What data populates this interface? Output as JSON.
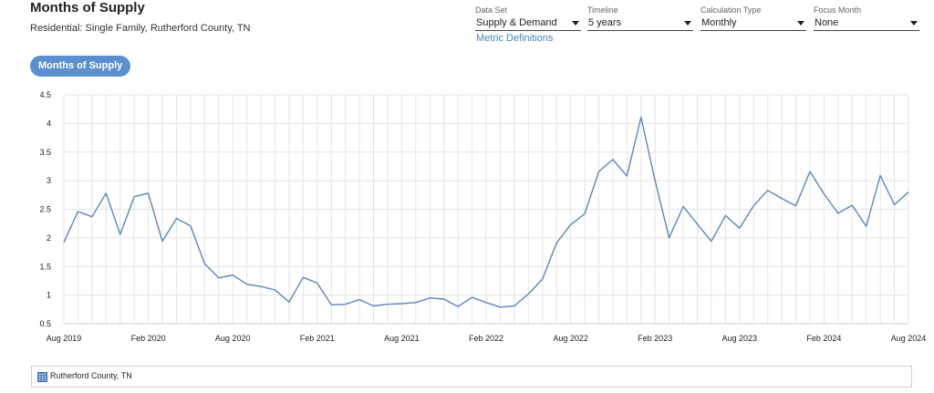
{
  "header": {
    "title": "Months of Supply",
    "subtitle": "Residential: Single Family, Rutherford County, TN"
  },
  "controls": {
    "data_set": {
      "label": "Data Set",
      "value": "Supply & Demand"
    },
    "timeline": {
      "label": "Timeline",
      "value": "5 years"
    },
    "calc_type": {
      "label": "Calculation Type",
      "value": "Monthly"
    },
    "focus_month": {
      "label": "Focus Month",
      "value": "None"
    }
  },
  "metric_definitions_link": "Metric Definitions",
  "metric_pill": "Months of Supply",
  "legend": {
    "label": "Rutherford County, TN"
  },
  "colors": {
    "accent": "#5b8fd0",
    "line": "#5a87c0",
    "link": "#4a84c4",
    "grid": "#e4e4e4"
  },
  "chart_data": {
    "type": "line",
    "x_tick_labels": [
      "Aug 2019",
      "Feb 2020",
      "Aug 2020",
      "Feb 2021",
      "Aug 2021",
      "Feb 2022",
      "Aug 2022",
      "Feb 2023",
      "Aug 2023",
      "Feb 2024",
      "Aug 2024"
    ],
    "y_tick_labels": [
      "0.5",
      "1",
      "1.5",
      "2",
      "2.5",
      "3",
      "3.5",
      "4",
      "4.5"
    ],
    "ylim": [
      0.5,
      4.5
    ],
    "grid": true,
    "series": [
      {
        "name": "Rutherford County, TN",
        "values": [
          1.92,
          2.46,
          2.37,
          2.78,
          2.06,
          2.72,
          2.78,
          1.94,
          2.34,
          2.21,
          1.55,
          1.3,
          1.35,
          1.19,
          1.15,
          1.09,
          0.88,
          1.31,
          1.21,
          0.83,
          0.84,
          0.92,
          0.81,
          0.84,
          0.85,
          0.87,
          0.95,
          0.93,
          0.8,
          0.96,
          0.87,
          0.79,
          0.81,
          1.02,
          1.28,
          1.91,
          2.23,
          2.42,
          3.16,
          3.37,
          3.08,
          4.11,
          3.0,
          2.0,
          2.55,
          2.24,
          1.94,
          2.39,
          2.17,
          2.56,
          2.83,
          2.69,
          2.56,
          3.16,
          2.77,
          2.43,
          2.57,
          2.2,
          3.09,
          2.58,
          2.8
        ]
      }
    ]
  }
}
